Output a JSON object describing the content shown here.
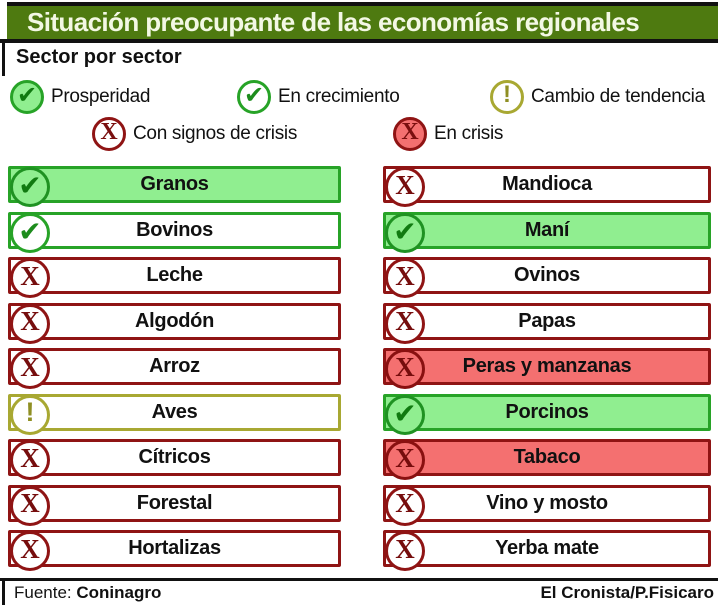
{
  "title": "Situación preocupante de las economías regionales",
  "subtitle": "Sector por sector",
  "symbols": {
    "check": "✔",
    "x": "X",
    "exclamation": "!"
  },
  "colors": {
    "header_bg": "#4e7a10",
    "header_text": "#f3f8e4",
    "prosperity_fill": "#90ee90",
    "green_border": "#27a327",
    "olive_border": "#a8a832",
    "dark_red_border": "#8f1414",
    "crisis_fill": "#f47070",
    "label_text": "#111111"
  },
  "legend": {
    "items": [
      {
        "id": "prosperity",
        "label": "Prosperidad",
        "symbol": "check"
      },
      {
        "id": "growth",
        "label": "En crecimiento",
        "symbol": "check"
      },
      {
        "id": "warning",
        "label": "Cambio de tendencia",
        "symbol": "exclamation"
      },
      {
        "id": "crisis-signs",
        "label": "Con signos de crisis",
        "symbol": "x"
      },
      {
        "id": "crisis",
        "label": "En crisis",
        "symbol": "x"
      }
    ]
  },
  "sectors": {
    "left": [
      {
        "label": "Granos",
        "status": "prosperity",
        "symbol": "check"
      },
      {
        "label": "Bovinos",
        "status": "growth",
        "symbol": "check"
      },
      {
        "label": "Leche",
        "status": "crisis-signs",
        "symbol": "x"
      },
      {
        "label": "Algodón",
        "status": "crisis-signs",
        "symbol": "x"
      },
      {
        "label": "Arroz",
        "status": "crisis-signs",
        "symbol": "x"
      },
      {
        "label": "Aves",
        "status": "warning",
        "symbol": "exclamation"
      },
      {
        "label": "Cítricos",
        "status": "crisis-signs",
        "symbol": "x"
      },
      {
        "label": "Forestal",
        "status": "crisis-signs",
        "symbol": "x"
      },
      {
        "label": "Hortalizas",
        "status": "crisis-signs",
        "symbol": "x"
      }
    ],
    "right": [
      {
        "label": "Mandioca",
        "status": "crisis-signs",
        "symbol": "x"
      },
      {
        "label": "Maní",
        "status": "prosperity",
        "symbol": "check"
      },
      {
        "label": "Ovinos",
        "status": "crisis-signs",
        "symbol": "x"
      },
      {
        "label": "Papas",
        "status": "crisis-signs",
        "symbol": "x"
      },
      {
        "label": "Peras y manzanas",
        "status": "crisis",
        "symbol": "x"
      },
      {
        "label": "Porcinos",
        "status": "prosperity",
        "symbol": "check"
      },
      {
        "label": "Tabaco",
        "status": "crisis",
        "symbol": "x"
      },
      {
        "label": "Vino y mosto",
        "status": "crisis-signs",
        "symbol": "x"
      },
      {
        "label": "Yerba mate",
        "status": "crisis-signs",
        "symbol": "x"
      }
    ]
  },
  "footer": {
    "source_label": "Fuente:",
    "source_value": "Coninagro",
    "credit": "El Cronista/P.Fisicaro"
  },
  "chart_data": {
    "type": "table",
    "title": "Situación preocupante de las economías regionales",
    "subtitle": "Sector por sector",
    "legend_entries": [
      "Prosperidad",
      "En crecimiento",
      "Cambio de tendencia",
      "Con signos de crisis",
      "En crisis"
    ],
    "rows": [
      {
        "sector": "Granos",
        "estado": "Prosperidad"
      },
      {
        "sector": "Bovinos",
        "estado": "En crecimiento"
      },
      {
        "sector": "Leche",
        "estado": "Con signos de crisis"
      },
      {
        "sector": "Algodón",
        "estado": "Con signos de crisis"
      },
      {
        "sector": "Arroz",
        "estado": "Con signos de crisis"
      },
      {
        "sector": "Aves",
        "estado": "Cambio de tendencia"
      },
      {
        "sector": "Cítricos",
        "estado": "Con signos de crisis"
      },
      {
        "sector": "Forestal",
        "estado": "Con signos de crisis"
      },
      {
        "sector": "Hortalizas",
        "estado": "Con signos de crisis"
      },
      {
        "sector": "Mandioca",
        "estado": "Con signos de crisis"
      },
      {
        "sector": "Maní",
        "estado": "Prosperidad"
      },
      {
        "sector": "Ovinos",
        "estado": "Con signos de crisis"
      },
      {
        "sector": "Papas",
        "estado": "Con signos de crisis"
      },
      {
        "sector": "Peras y manzanas",
        "estado": "En crisis"
      },
      {
        "sector": "Porcinos",
        "estado": "Prosperidad"
      },
      {
        "sector": "Tabaco",
        "estado": "En crisis"
      },
      {
        "sector": "Vino y mosto",
        "estado": "Con signos de crisis"
      },
      {
        "sector": "Yerba mate",
        "estado": "Con signos de crisis"
      }
    ]
  }
}
